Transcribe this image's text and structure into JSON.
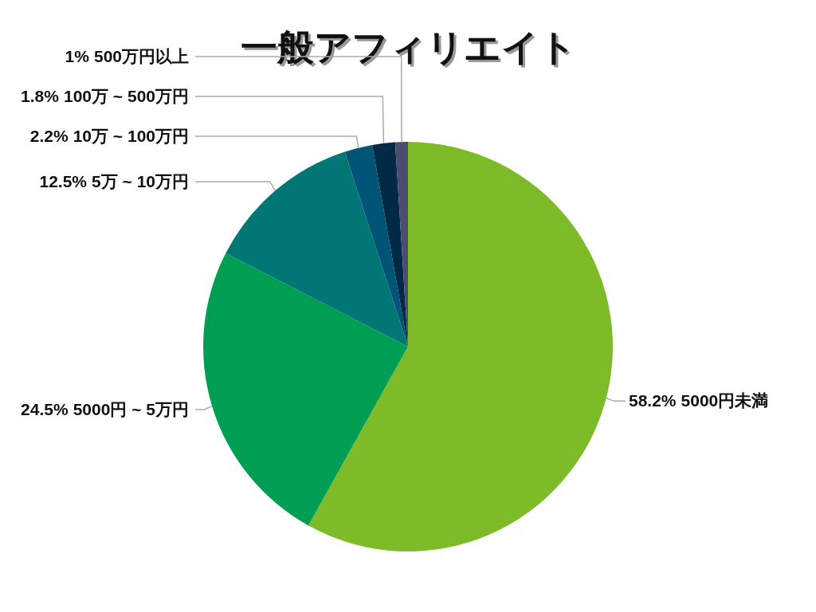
{
  "chart_data": {
    "type": "pie",
    "title": "一般アフィリエイト",
    "categories": [
      "5000円未満",
      "5000円 ~ 5万円",
      "5万 ~ 10万円",
      "10万 ~ 100万円",
      "100万 ~ 500万円",
      "500万円以上"
    ],
    "values": [
      58.2,
      24.5,
      12.5,
      2.2,
      1.8,
      1
    ],
    "colors": [
      "#7dbb28",
      "#009e52",
      "#007774",
      "#005577",
      "#022a47",
      "#4b4c6e"
    ],
    "value_labels": [
      "58.2%",
      "24.5%",
      "12.5%",
      "2.2%",
      "1.8%",
      "1%"
    ]
  }
}
